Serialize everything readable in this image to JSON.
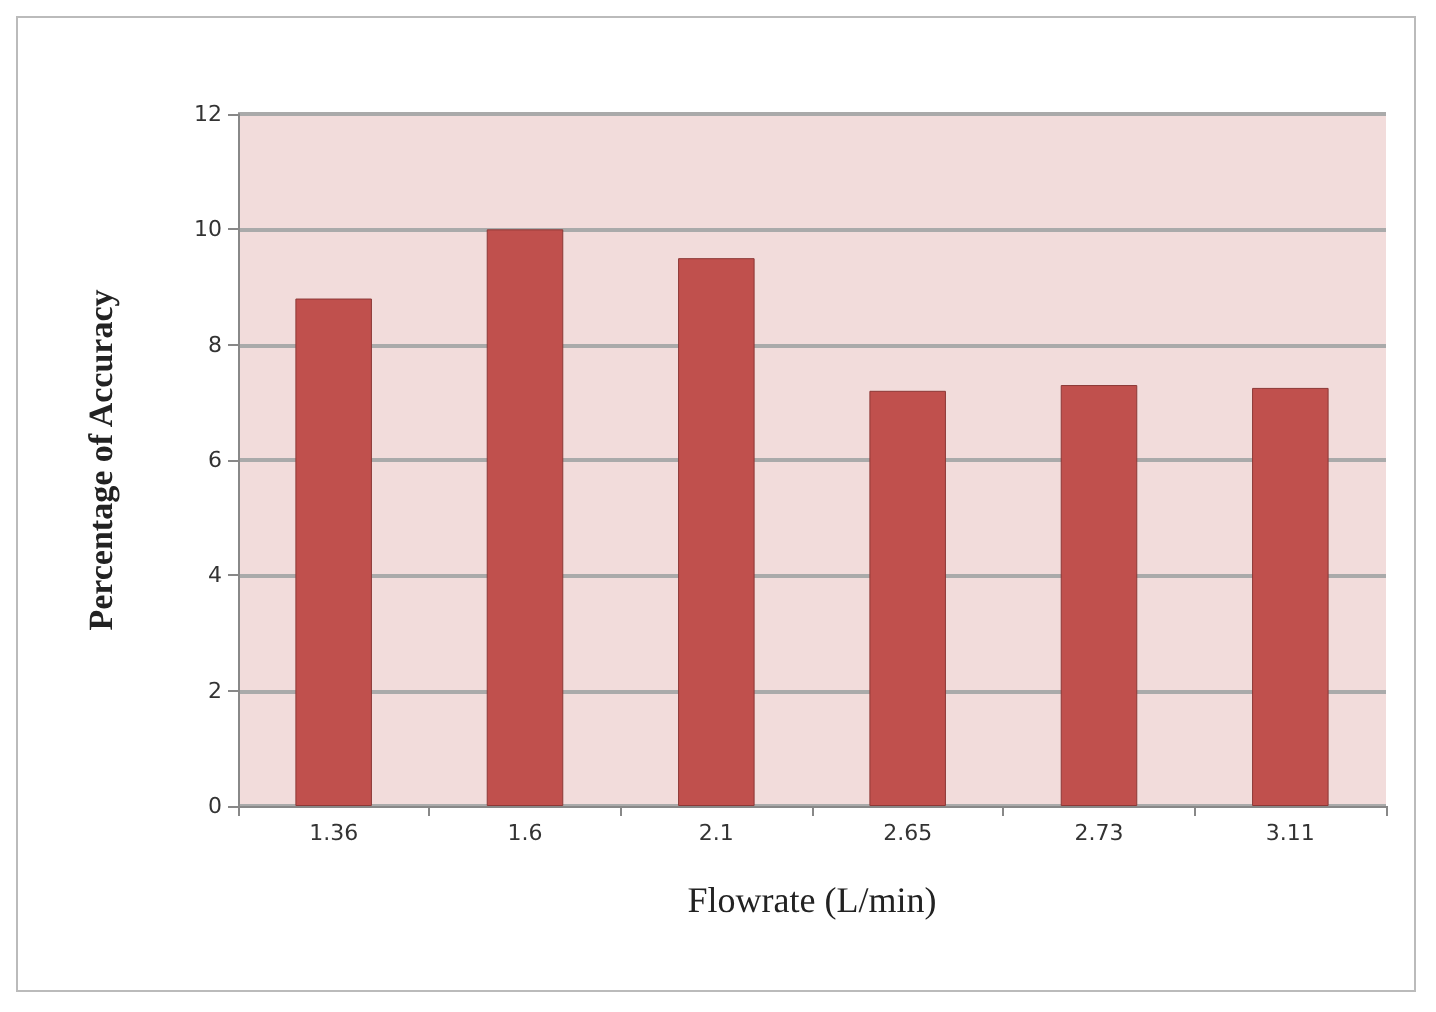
{
  "chart_data": {
    "type": "bar",
    "xlabel": "Flowrate (L/min)",
    "ylabel": "Percentage of Accuracy",
    "categories": [
      "1.36",
      "1.6",
      "2.1",
      "2.65",
      "2.73",
      "3.11"
    ],
    "values": [
      8.8,
      10,
      9.5,
      7.2,
      7.3,
      7.25
    ],
    "color": "#c0504d",
    "ylim": [
      0,
      12
    ],
    "yticks": [
      0,
      2,
      4,
      6,
      8,
      10,
      12
    ],
    "grid": "y"
  }
}
